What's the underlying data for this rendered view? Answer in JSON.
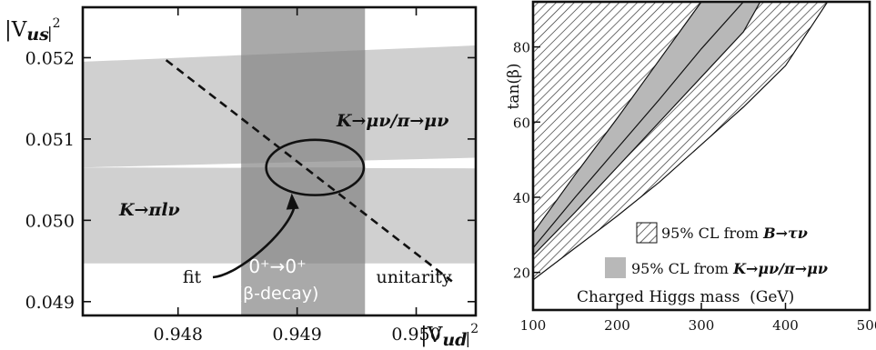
{
  "chart_data": [
    {
      "type": "scatter",
      "panel": "left",
      "xlabel": "|V_ud|²",
      "ylabel": "|V_us|²",
      "xlim": [
        0.9472,
        0.9505
      ],
      "ylim": [
        0.04883,
        0.05262
      ],
      "x_ticks": [
        "0.948",
        "0.949",
        "0.950"
      ],
      "x_tick_values": [
        0.948,
        0.949,
        0.95
      ],
      "y_ticks": [
        "0.049",
        "0.050",
        "0.051",
        "0.052"
      ],
      "y_tick_values": [
        0.049,
        0.05,
        0.051,
        0.052
      ],
      "bands": [
        {
          "name": "K→μν/π→μν",
          "x_range": [
            0.9472,
            0.9505
          ],
          "y_left": [
            0.05065,
            0.05195
          ],
          "y_right": [
            0.05077,
            0.05215
          ]
        },
        {
          "name": "K→πlν",
          "x_range": [
            0.9472,
            0.9505
          ],
          "y_lower": 0.04947,
          "y_upper": 0.05065
        },
        {
          "name": "0+→0+ (β-decay)",
          "x_range": [
            0.94853,
            0.94957
          ]
        }
      ],
      "unitarity_line": {
        "name": "unitarity",
        "x": [
          0.9479,
          0.9503
        ],
        "y": [
          0.05197,
          0.04925
        ]
      },
      "fit_ellipse": {
        "name": "fit",
        "cx": 0.94915,
        "cy": 0.05065,
        "rx": 0.00041,
        "ry": 0.00034
      },
      "labels": {
        "kmunu": "K→μν/π→μν",
        "kpilnu": "K→πlν",
        "fit": "fit",
        "unitarity": "unitarity",
        "beta_line1": "0⁺→0⁺",
        "beta_line2": "(β-decay)",
        "x_axis": "|V",
        "x_axis_sub": "ud",
        "x_axis_exp": "2",
        "y_axis": "|V",
        "y_axis_sub": "us",
        "y_axis_exp": "2"
      },
      "colors": {
        "light_band": "#d0d0d0",
        "dark_band": "#a9a9a9",
        "overlap": "#9a9a9a"
      }
    },
    {
      "type": "area",
      "panel": "right",
      "xlabel": "Charged Higgs mass (GeV)",
      "ylabel": "tan(β)",
      "xlim": [
        100,
        500
      ],
      "ylim": [
        10,
        92
      ],
      "x_ticks": [
        "100",
        "200",
        "300",
        "400",
        "500"
      ],
      "x_tick_values": [
        100,
        200,
        300,
        400,
        500
      ],
      "y_ticks": [
        "20",
        "40",
        "60",
        "80"
      ],
      "y_tick_values": [
        20,
        40,
        60,
        80
      ],
      "regions": [
        {
          "name": "95% CL from B→τν (inner)",
          "boundary_left": {
            "x": [
              100,
              150,
              200,
              250,
              300
            ],
            "tan_beta": [
              30.5,
              46,
              61,
              76.5,
              92
            ]
          },
          "boundary_right": {
            "x": [
              100,
              150,
              200,
              250,
              300,
              350
            ],
            "tan_beta": [
              26.5,
              40,
              53,
              66,
              79.5,
              92
            ]
          }
        },
        {
          "name": "95% CL from K→μν/π→μν",
          "boundary_left": {
            "x": [
              100,
              150,
              200,
              250,
              300,
              350
            ],
            "tan_beta": [
              26.5,
              40,
              53,
              66,
              79.5,
              92
            ]
          },
          "boundary_right": {
            "x": [
              100,
              150,
              200,
              250,
              300,
              350,
              370
            ],
            "tan_beta": [
              24.5,
              36,
              48,
              60,
              72,
              84,
              92
            ]
          }
        },
        {
          "name": "95% CL from B→τν (outer)",
          "boundary_left": {
            "x": [
              100,
              150,
              200,
              250,
              300,
              350,
              370
            ],
            "tan_beta": [
              24.5,
              36,
              48,
              60,
              72,
              84,
              92
            ]
          },
          "boundary_right": {
            "x": [
              100,
              150,
              200,
              250,
              300,
              350,
              400,
              450
            ],
            "tan_beta": [
              18,
              26.5,
              35,
              44,
              54,
              64,
              75,
              92
            ]
          }
        }
      ],
      "legend": [
        {
          "label_prefix": "95% CL from ",
          "label_math": "B→τν",
          "style": "hatched"
        },
        {
          "label_prefix": "95% CL from ",
          "label_math": "K→μν/π→μν",
          "style": "gray"
        }
      ],
      "annotation": "Charged Higgs mass  (GeV)",
      "y_axis_label": "tan(β)",
      "colors": {
        "gray": "#b8b8b8",
        "hatch": "#222222"
      }
    }
  ]
}
